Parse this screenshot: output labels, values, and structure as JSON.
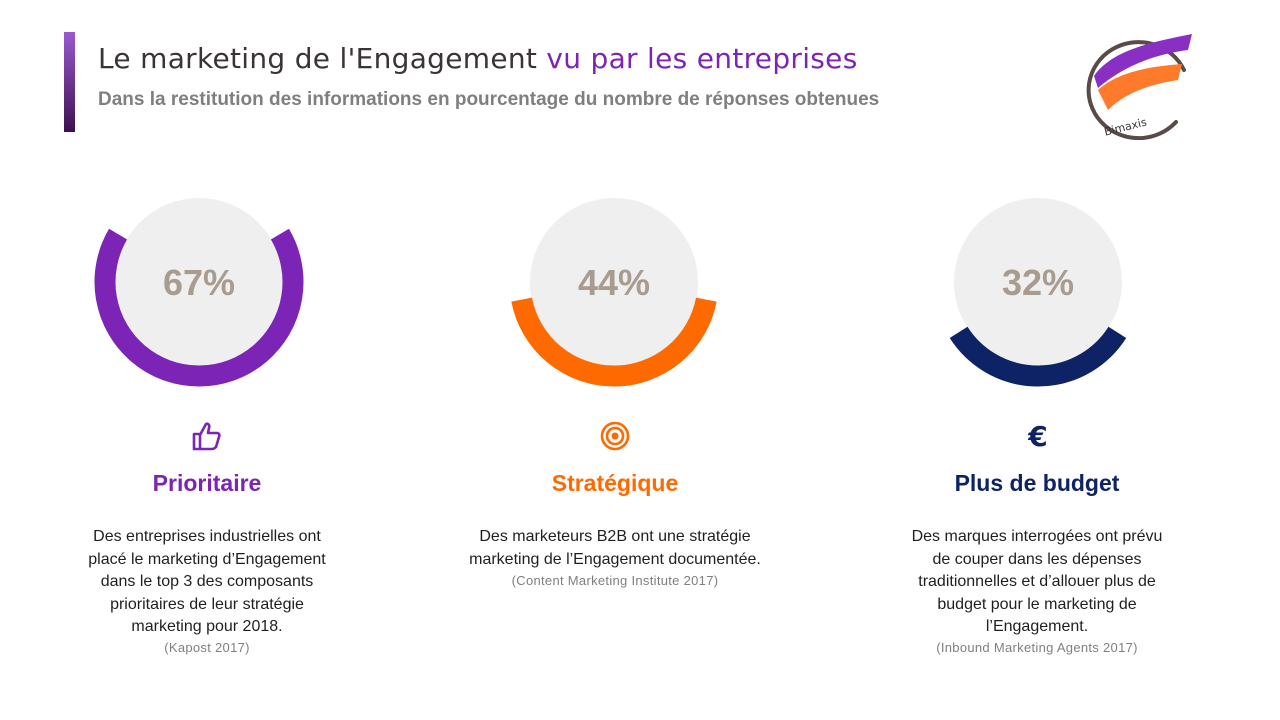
{
  "header": {
    "title_main": "Le marketing de l'Engagement",
    "title_highlight": "vu par les entreprises",
    "subtitle": "Dans la restitution des informations en pourcentage du nombre de réponses obtenues",
    "logo_text": "Bimaxis"
  },
  "colors": {
    "accent": "#7b24b6",
    "purple": "#7b24b6",
    "orange": "#ff6a00",
    "navy": "#0d2366",
    "disc": "#f0efef",
    "value_text": "#a89b8f"
  },
  "chart_data": {
    "type": "pie",
    "series": [
      {
        "label": "67%",
        "value": 67,
        "color": "#7b24b6"
      },
      {
        "label": "44%",
        "value": 44,
        "color": "#ff6a00"
      },
      {
        "label": "32%",
        "value": 32,
        "color": "#0d2366"
      }
    ]
  },
  "cards": [
    {
      "icon": "thumbs-up-icon",
      "heading": "Prioritaire",
      "lines": [
        "Des entreprises industrielles ont",
        "placé le marketing d’Engagement",
        "dans le top 3 des composants",
        "prioritaires de leur stratégie",
        "marketing pour 2018."
      ],
      "source": "(Kapost 2017)"
    },
    {
      "icon": "target-icon",
      "heading": "Stratégique",
      "lines": [
        "Des marketeurs B2B ont une stratégie",
        "marketing de l’Engagement documentée."
      ],
      "source": "(Content Marketing Institute 2017)"
    },
    {
      "icon": "euro-icon",
      "heading": "Plus de budget",
      "lines": [
        "Des marques interrogées ont prévu",
        "de couper dans les dépenses",
        "traditionnelles et d’allouer plus de",
        "budget pour le marketing de",
        "l’Engagement."
      ],
      "source": "(Inbound Marketing Agents 2017)"
    }
  ]
}
